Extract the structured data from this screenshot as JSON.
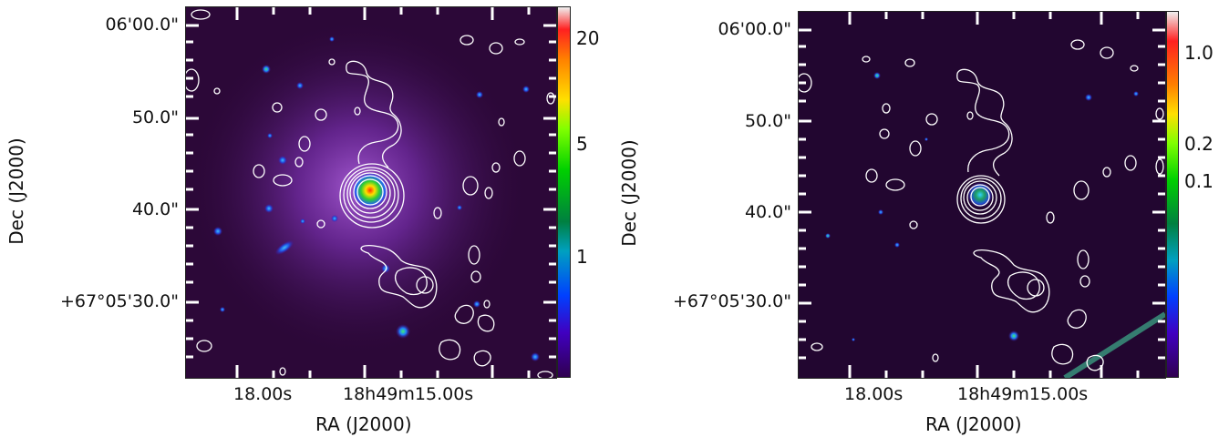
{
  "left": {
    "ra_ticks": [
      "18.00s",
      "18h49m15.00s"
    ],
    "dec_ticks": [
      "06'00.0\"",
      "50.0\"",
      "40.0\"",
      "+67°05'30.0\""
    ],
    "xlabel": "RA (J2000)",
    "ylabel": "Dec (J2000)",
    "colorbar_labels": [
      "20",
      "5",
      "1"
    ]
  },
  "right": {
    "ra_ticks": [
      "18.00s",
      "18h49m15.00s"
    ],
    "dec_ticks": [
      "06'00.0\"",
      "50.0\"",
      "40.0\"",
      "+67°05'30.0\""
    ],
    "xlabel": "RA (J2000)",
    "ylabel": "Dec (J2000)",
    "colorbar_labels": [
      "1.0",
      "0.2",
      "0.1"
    ]
  },
  "colors": {
    "background": "#2a0636",
    "contour": "#ffffff"
  }
}
